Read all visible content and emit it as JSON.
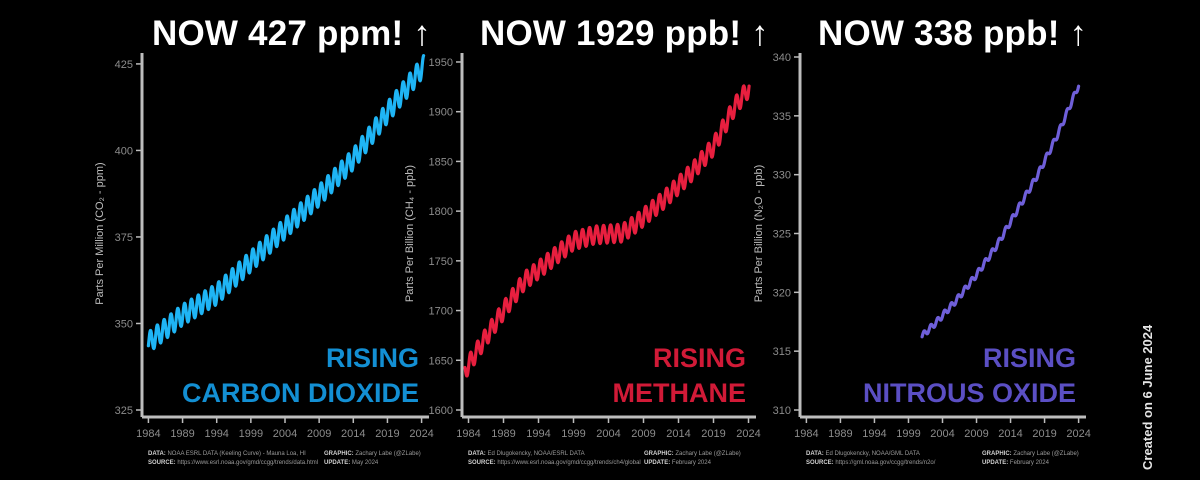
{
  "created_note": "Created on 6 June 2024",
  "chart_data": [
    {
      "type": "line",
      "headline": "NOW 427 ppm! ↑",
      "ylabel": "Parts Per Million (CO₂ - ppm)",
      "overlay_line1": "RISING",
      "overlay_line2": "CARBON DIOXIDE",
      "color": "#1fb5f5",
      "overlay_color": "#138fd3",
      "xlim": [
        1983.5,
        2024.5
      ],
      "ylim": [
        325,
        427
      ],
      "xticks": [
        1984,
        1989,
        1994,
        1999,
        2004,
        2009,
        2014,
        2019,
        2024
      ],
      "yticks": [
        325,
        350,
        375,
        400,
        425
      ],
      "x_start": 1984.0,
      "x_end": 2024.33,
      "seasonal_amplitude": 3.0,
      "trend": {
        "x": [
          1984,
          1989,
          1994,
          1999,
          2004,
          2009,
          2014,
          2019,
          2024.33
        ],
        "y": [
          344.5,
          352.5,
          358.5,
          368,
          377.5,
          387,
          397.5,
          411,
          424.5
        ]
      },
      "credits": {
        "data_label": "DATA:",
        "data": "NOAA ESRL DATA (Keeling Curve) - Mauna Loa, HI",
        "source_label": "SOURCE:",
        "source": "https://www.esrl.noaa.gov/gmd/ccgg/trends/data.html",
        "graphic_label": "GRAPHIC:",
        "graphic": "Zachary Labe (@ZLabe)",
        "update_label": "UPDATE:",
        "update": "May 2024"
      }
    },
    {
      "type": "line",
      "headline": "NOW 1929 ppb! ↑",
      "ylabel": "Parts Per Billion (CH₄ - ppb)",
      "overlay_line1": "RISING",
      "overlay_line2": "METHANE",
      "color": "#e81f3f",
      "overlay_color": "#d11a37",
      "xlim": [
        1983.5,
        2024.5
      ],
      "ylim": [
        1600,
        1955
      ],
      "xticks": [
        1984,
        1989,
        1994,
        1999,
        2004,
        2009,
        2014,
        2019,
        2024
      ],
      "yticks": [
        1600,
        1650,
        1700,
        1750,
        1800,
        1850,
        1900,
        1950
      ],
      "x_start": 1983.5,
      "x_end": 2024.1,
      "seasonal_amplitude": 9.0,
      "trend": {
        "x": [
          1983.5,
          1986,
          1989,
          1992,
          1994,
          1999,
          2002,
          2004,
          2006,
          2008,
          2012,
          2016,
          2019,
          2022,
          2024.1
        ],
        "y": [
          1640,
          1668,
          1700,
          1730,
          1741,
          1770,
          1776,
          1777,
          1778,
          1788,
          1812,
          1840,
          1865,
          1905,
          1924
        ]
      },
      "credits": {
        "data_label": "DATA:",
        "data": "Ed Dlugokencky, NOAA/ESRL DATA",
        "source_label": "SOURCE:",
        "source": "https://www.esrl.noaa.gov/gmd/ccgg/trends/ch4/global",
        "graphic_label": "GRAPHIC:",
        "graphic": "Zachary Labe (@ZLabe)",
        "update_label": "UPDATE:",
        "update": "February 2024"
      }
    },
    {
      "type": "line",
      "headline": "NOW 338 ppb! ↑",
      "ylabel": "Parts Per Billion (N₂O - ppb)",
      "overlay_line1": "RISING",
      "overlay_line2": "NITROUS OXIDE",
      "color": "#6f5fd9",
      "overlay_color": "#5b4fc4",
      "xlim": [
        1983.5,
        2024.5
      ],
      "ylim": [
        310,
        340
      ],
      "xticks": [
        1984,
        1989,
        1994,
        1999,
        2004,
        2009,
        2014,
        2019,
        2024
      ],
      "yticks": [
        310,
        315,
        320,
        325,
        330,
        335,
        340
      ],
      "x_start": 2001.0,
      "x_end": 2024.0,
      "seasonal_amplitude": 0.25,
      "trend": {
        "x": [
          2001,
          2003,
          2006,
          2009,
          2012,
          2015,
          2018,
          2021,
          2024
        ],
        "y": [
          316.3,
          317.4,
          319.3,
          321.5,
          324.0,
          327.0,
          330.0,
          333.5,
          337.6
        ]
      },
      "credits": {
        "data_label": "DATA:",
        "data": "Ed Dlugokencky, NOAA/GML DATA",
        "source_label": "SOURCE:",
        "source": "https://gml.noaa.gov/ccgg/trends/n2o/",
        "graphic_label": "GRAPHIC:",
        "graphic": "Zachary Labe (@ZLabe)",
        "update_label": "UPDATE:",
        "update": "February 2024"
      }
    }
  ]
}
